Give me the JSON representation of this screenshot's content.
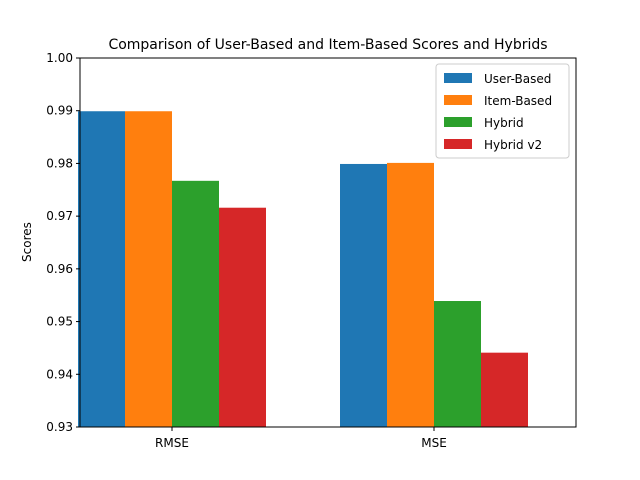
{
  "chart_data": {
    "type": "bar",
    "title": "Comparison of User-Based and Item-Based Scores and Hybrids",
    "xlabel": "",
    "ylabel": "Scores",
    "categories": [
      "RMSE",
      "MSE"
    ],
    "series": [
      {
        "name": "User-Based",
        "color": "#1f77b4",
        "values": [
          0.9899,
          0.9799
        ]
      },
      {
        "name": "Item-Based",
        "color": "#ff7f0e",
        "values": [
          0.9899,
          0.9801
        ]
      },
      {
        "name": "Hybrid",
        "color": "#2ca02c",
        "values": [
          0.9767,
          0.9539
        ]
      },
      {
        "name": "Hybrid v2",
        "color": "#d62728",
        "values": [
          0.9716,
          0.9441
        ]
      }
    ],
    "ylim": [
      0.93,
      1.0
    ],
    "yticks": [
      "0.93",
      "0.94",
      "0.95",
      "0.96",
      "0.97",
      "0.98",
      "0.99",
      "1.00"
    ],
    "grid": false,
    "legend_position": "top-right"
  }
}
